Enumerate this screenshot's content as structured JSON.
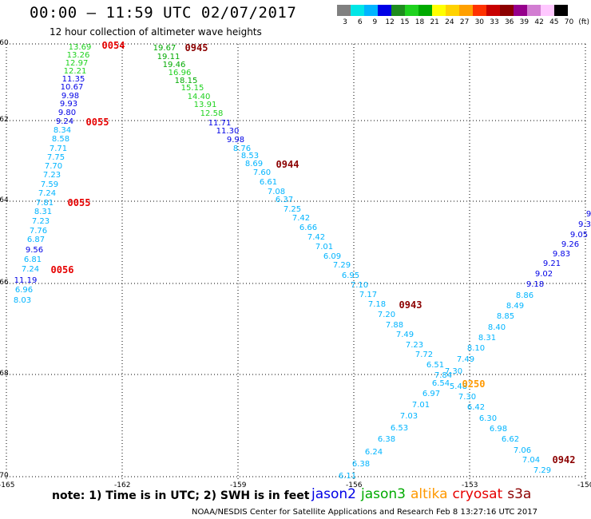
{
  "header": {
    "title": "00:00 – 11:59 UTC 02/07/2017",
    "subtitle": "12 hour collection of altimeter wave heights"
  },
  "legend": {
    "colors": [
      "#808080",
      "#00e6e6",
      "#00b4ff",
      "#0000e6",
      "#1e8c1e",
      "#1ed21e",
      "#00aa00",
      "#ffff00",
      "#ffd200",
      "#ffa000",
      "#ff3200",
      "#c80000",
      "#8c0000",
      "#96008c",
      "#d27dd2",
      "#ffc8ff",
      "#000000"
    ],
    "labels": [
      "3",
      "6",
      "9",
      "12",
      "15",
      "18",
      "21",
      "24",
      "27",
      "30",
      "33",
      "36",
      "39",
      "42",
      "45",
      "70",
      "(ft)"
    ]
  },
  "axes": {
    "x_ticks": [
      "-165",
      "-162",
      "-159",
      "-156",
      "-153",
      "-150"
    ],
    "y_ticks": [
      "-60",
      "-62",
      "-64",
      "-66",
      "-68",
      "-70"
    ]
  },
  "passes": [
    {
      "label": "0054",
      "color": "#e60000"
    },
    {
      "label": "0055",
      "color": "#e60000"
    },
    {
      "label": "0055",
      "color": "#e60000"
    },
    {
      "label": "0056",
      "color": "#e60000"
    },
    {
      "label": "0945",
      "color": "#8c0000"
    },
    {
      "label": "0944",
      "color": "#8c0000"
    },
    {
      "label": "0943",
      "color": "#8c0000"
    },
    {
      "label": "0250",
      "color": "#ff9900"
    },
    {
      "label": "0942",
      "color": "#8c0000"
    }
  ],
  "tracks": [
    {
      "name": "track-1",
      "values": [
        {
          "v": "13.69",
          "c": "#1ed21e"
        },
        {
          "v": "13.26",
          "c": "#1ed21e"
        },
        {
          "v": "12.97",
          "c": "#1ed21e"
        },
        {
          "v": "12.21",
          "c": "#1ed21e"
        },
        {
          "v": "11.35",
          "c": "#0000e6"
        },
        {
          "v": "10.67",
          "c": "#0000e6"
        },
        {
          "v": "9.98",
          "c": "#0000e6"
        },
        {
          "v": "9.93",
          "c": "#0000e6"
        },
        {
          "v": "9.80",
          "c": "#0000e6"
        },
        {
          "v": "9.24",
          "c": "#0000e6"
        },
        {
          "v": "8.34",
          "c": "#00b4ff"
        },
        {
          "v": "8.58",
          "c": "#00b4ff"
        },
        {
          "v": "7.71",
          "c": "#00b4ff"
        },
        {
          "v": "7.75",
          "c": "#00b4ff"
        },
        {
          "v": "7.70",
          "c": "#00b4ff"
        },
        {
          "v": "7.23",
          "c": "#00b4ff"
        },
        {
          "v": "7.59",
          "c": "#00b4ff"
        },
        {
          "v": "7.24",
          "c": "#00b4ff"
        },
        {
          "v": "7.81",
          "c": "#00b4ff"
        },
        {
          "v": "8.31",
          "c": "#00b4ff"
        },
        {
          "v": "7.23",
          "c": "#00b4ff"
        },
        {
          "v": "7.76",
          "c": "#00b4ff"
        },
        {
          "v": "6.87",
          "c": "#00b4ff"
        },
        {
          "v": "9.56",
          "c": "#0000e6"
        },
        {
          "v": "6.81",
          "c": "#00b4ff"
        },
        {
          "v": "7.24",
          "c": "#00b4ff"
        },
        {
          "v": "11.19",
          "c": "#0000e6"
        },
        {
          "v": "6.96",
          "c": "#00b4ff"
        },
        {
          "v": "8.03",
          "c": "#00b4ff"
        }
      ]
    },
    {
      "name": "track-2",
      "values": [
        {
          "v": "19.67",
          "c": "#00aa00"
        },
        {
          "v": "19.11",
          "c": "#00aa00"
        },
        {
          "v": "19.46",
          "c": "#00aa00"
        },
        {
          "v": "16.96",
          "c": "#1ed21e"
        },
        {
          "v": "18.15",
          "c": "#00aa00"
        },
        {
          "v": "15.15",
          "c": "#1ed21e"
        },
        {
          "v": "14.40",
          "c": "#1ed21e"
        },
        {
          "v": "13.91",
          "c": "#1ed21e"
        },
        {
          "v": "12.58",
          "c": "#1ed21e"
        },
        {
          "v": "11.71",
          "c": "#0000e6"
        },
        {
          "v": "11.30",
          "c": "#0000e6"
        },
        {
          "v": "9.98",
          "c": "#0000e6"
        },
        {
          "v": "8.76",
          "c": "#00b4ff"
        },
        {
          "v": "8.53",
          "c": "#00b4ff"
        },
        {
          "v": "8.69",
          "c": "#00b4ff"
        },
        {
          "v": "7.60",
          "c": "#00b4ff"
        },
        {
          "v": "6.61",
          "c": "#00b4ff"
        },
        {
          "v": "7.08",
          "c": "#00b4ff"
        },
        {
          "v": "6.37",
          "c": "#00b4ff"
        },
        {
          "v": "7.25",
          "c": "#00b4ff"
        },
        {
          "v": "7.42",
          "c": "#00b4ff"
        },
        {
          "v": "6.66",
          "c": "#00b4ff"
        },
        {
          "v": "7.42",
          "c": "#00b4ff"
        },
        {
          "v": "7.01",
          "c": "#00b4ff"
        },
        {
          "v": "6.09",
          "c": "#00b4ff"
        },
        {
          "v": "7.29",
          "c": "#00b4ff"
        },
        {
          "v": "6.95",
          "c": "#00b4ff"
        },
        {
          "v": "7.10",
          "c": "#00b4ff"
        },
        {
          "v": "7.17",
          "c": "#00b4ff"
        },
        {
          "v": "7.18",
          "c": "#00b4ff"
        },
        {
          "v": "7.20",
          "c": "#00b4ff"
        },
        {
          "v": "7.88",
          "c": "#00b4ff"
        },
        {
          "v": "7.49",
          "c": "#00b4ff"
        },
        {
          "v": "7.23",
          "c": "#00b4ff"
        },
        {
          "v": "7.72",
          "c": "#00b4ff"
        },
        {
          "v": "6.51",
          "c": "#00b4ff"
        },
        {
          "v": "7.30",
          "c": "#00b4ff"
        },
        {
          "v": "6.54",
          "c": "#00b4ff"
        },
        {
          "v": "5.48",
          "c": "#00b4ff"
        },
        {
          "v": "7.30",
          "c": "#00b4ff"
        },
        {
          "v": "6.42",
          "c": "#00b4ff"
        },
        {
          "v": "6.30",
          "c": "#00b4ff"
        },
        {
          "v": "6.98",
          "c": "#00b4ff"
        },
        {
          "v": "6.62",
          "c": "#00b4ff"
        },
        {
          "v": "7.06",
          "c": "#00b4ff"
        },
        {
          "v": "7.04",
          "c": "#00b4ff"
        },
        {
          "v": "7.29",
          "c": "#00b4ff"
        }
      ]
    },
    {
      "name": "track-3",
      "values": [
        {
          "v": "9",
          "c": "#0000e6"
        },
        {
          "v": "9.3",
          "c": "#0000e6"
        },
        {
          "v": "9.05",
          "c": "#0000e6"
        },
        {
          "v": "9.26",
          "c": "#0000e6"
        },
        {
          "v": "9.83",
          "c": "#0000e6"
        },
        {
          "v": "9.21",
          "c": "#0000e6"
        },
        {
          "v": "9.02",
          "c": "#0000e6"
        },
        {
          "v": "9.18",
          "c": "#0000e6"
        },
        {
          "v": "8.86",
          "c": "#00b4ff"
        },
        {
          "v": "8.49",
          "c": "#00b4ff"
        },
        {
          "v": "8.85",
          "c": "#00b4ff"
        },
        {
          "v": "8.40",
          "c": "#00b4ff"
        },
        {
          "v": "8.31",
          "c": "#00b4ff"
        },
        {
          "v": "8.10",
          "c": "#00b4ff"
        },
        {
          "v": "7.49",
          "c": "#00b4ff"
        },
        {
          "v": "7.84",
          "c": "#00b4ff"
        },
        {
          "v": "6.97",
          "c": "#00b4ff"
        },
        {
          "v": "7.01",
          "c": "#00b4ff"
        },
        {
          "v": "7.03",
          "c": "#00b4ff"
        },
        {
          "v": "6.53",
          "c": "#00b4ff"
        },
        {
          "v": "6.38",
          "c": "#00b4ff"
        },
        {
          "v": "6.24",
          "c": "#00b4ff"
        },
        {
          "v": "6.38",
          "c": "#00b4ff"
        },
        {
          "v": "6.11",
          "c": "#00b4ff"
        }
      ]
    }
  ],
  "footer": {
    "note": "note: 1) Time is in UTC; 2) SWH is in feet",
    "satellites": [
      {
        "name": "jason2",
        "color": "#0000e6"
      },
      {
        "name": "jason3",
        "color": "#00aa00"
      },
      {
        "name": "altika",
        "color": "#ff9900"
      },
      {
        "name": "cryosat",
        "color": "#e60000"
      },
      {
        "name": "s3a",
        "color": "#8c0000"
      }
    ],
    "credit": "NOAA/NESDIS Center for Satellite Applications and Research    Feb  8 13:27:16 UTC 2017"
  }
}
